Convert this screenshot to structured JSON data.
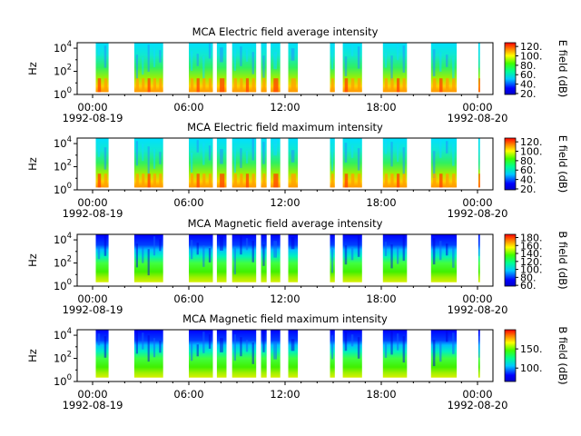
{
  "chart_data": [
    {
      "type": "heatmap",
      "title": "MCA  Electric field average intensity",
      "ylabel": "Hz",
      "ylim": [
        1,
        30000
      ],
      "yscale": "log",
      "y_ticks": [
        {
          "value": 1,
          "base": "10",
          "exp": "0"
        },
        {
          "value": 100,
          "base": "10",
          "exp": "2"
        },
        {
          "value": 10000,
          "base": "10",
          "exp": "4"
        }
      ],
      "x_ticks": [
        {
          "hour": 0,
          "label": "00:00",
          "date": "1992-08-19"
        },
        {
          "hour": 6,
          "label": "06:00",
          "date": ""
        },
        {
          "hour": 12,
          "label": "12:00",
          "date": ""
        },
        {
          "hour": 18,
          "label": "18:00",
          "date": ""
        },
        {
          "hour": 24,
          "label": "00:00",
          "date": "1992-08-20"
        }
      ],
      "colorbar": {
        "label": "E field (dB)",
        "range": [
          18,
          128
        ],
        "ticks": [
          "120.",
          "100.",
          "80.",
          "60.",
          "40.",
          "20."
        ],
        "tick_values": [
          120,
          100,
          80,
          60,
          40,
          20
        ]
      }
    },
    {
      "type": "heatmap",
      "title": "MCA  Electric field maximum intensity",
      "ylabel": "Hz",
      "ylim": [
        1,
        30000
      ],
      "yscale": "log",
      "y_ticks": [
        {
          "value": 1,
          "base": "10",
          "exp": "0"
        },
        {
          "value": 100,
          "base": "10",
          "exp": "2"
        },
        {
          "value": 10000,
          "base": "10",
          "exp": "4"
        }
      ],
      "x_ticks": [
        {
          "hour": 0,
          "label": "00:00",
          "date": "1992-08-19"
        },
        {
          "hour": 6,
          "label": "06:00",
          "date": ""
        },
        {
          "hour": 12,
          "label": "12:00",
          "date": ""
        },
        {
          "hour": 18,
          "label": "18:00",
          "date": ""
        },
        {
          "hour": 24,
          "label": "00:00",
          "date": "1992-08-20"
        }
      ],
      "colorbar": {
        "label": "E field (dB)",
        "range": [
          18,
          128
        ],
        "ticks": [
          "120.",
          "100.",
          "80.",
          "60.",
          "40.",
          "20."
        ],
        "tick_values": [
          120,
          100,
          80,
          60,
          40,
          20
        ]
      }
    },
    {
      "type": "heatmap",
      "title": "MCA  Magnetic field average intensity",
      "ylabel": "Hz",
      "ylim": [
        1,
        30000
      ],
      "yscale": "log",
      "y_ticks": [
        {
          "value": 1,
          "base": "10",
          "exp": "0"
        },
        {
          "value": 100,
          "base": "10",
          "exp": "2"
        },
        {
          "value": 10000,
          "base": "10",
          "exp": "4"
        }
      ],
      "x_ticks": [
        {
          "hour": 0,
          "label": "00:00",
          "date": "1992-08-19"
        },
        {
          "hour": 6,
          "label": "06:00",
          "date": ""
        },
        {
          "hour": 12,
          "label": "12:00",
          "date": ""
        },
        {
          "hour": 18,
          "label": "18:00",
          "date": ""
        },
        {
          "hour": 24,
          "label": "00:00",
          "date": "1992-08-20"
        }
      ],
      "colorbar": {
        "label": "B field (dB)",
        "range": [
          58,
          188
        ],
        "ticks": [
          "180.",
          "160.",
          "140.",
          "120.",
          "100.",
          "80.",
          "60."
        ],
        "tick_values": [
          180,
          160,
          140,
          120,
          100,
          80,
          60
        ]
      }
    },
    {
      "type": "heatmap",
      "title": "MCA  Magnetic field maximum intensity",
      "ylabel": "Hz",
      "ylim": [
        1,
        30000
      ],
      "yscale": "log",
      "y_ticks": [
        {
          "value": 1,
          "base": "10",
          "exp": "0"
        },
        {
          "value": 100,
          "base": "10",
          "exp": "2"
        },
        {
          "value": 10000,
          "base": "10",
          "exp": "4"
        }
      ],
      "x_ticks": [
        {
          "hour": 0,
          "label": "00:00",
          "date": "1992-08-19"
        },
        {
          "hour": 6,
          "label": "06:00",
          "date": ""
        },
        {
          "hour": 12,
          "label": "12:00",
          "date": ""
        },
        {
          "hour": 18,
          "label": "18:00",
          "date": ""
        },
        {
          "hour": 24,
          "label": "00:00",
          "date": "1992-08-20"
        }
      ],
      "colorbar": {
        "label": "B field (dB)",
        "range": [
          65,
          200
        ],
        "ticks": [
          "150.",
          "100."
        ],
        "tick_values": [
          150,
          100
        ]
      }
    }
  ],
  "data_intervals_hours": [
    [
      0.2,
      1.0
    ],
    [
      2.6,
      4.4
    ],
    [
      6.0,
      7.5
    ],
    [
      7.75,
      8.35
    ],
    [
      8.7,
      10.2
    ],
    [
      10.5,
      10.85
    ],
    [
      11.1,
      11.7
    ],
    [
      12.2,
      12.8
    ],
    [
      14.8,
      15.1
    ],
    [
      15.6,
      16.8
    ],
    [
      18.1,
      19.6
    ],
    [
      21.1,
      22.7
    ],
    [
      24.05,
      24.15
    ]
  ]
}
